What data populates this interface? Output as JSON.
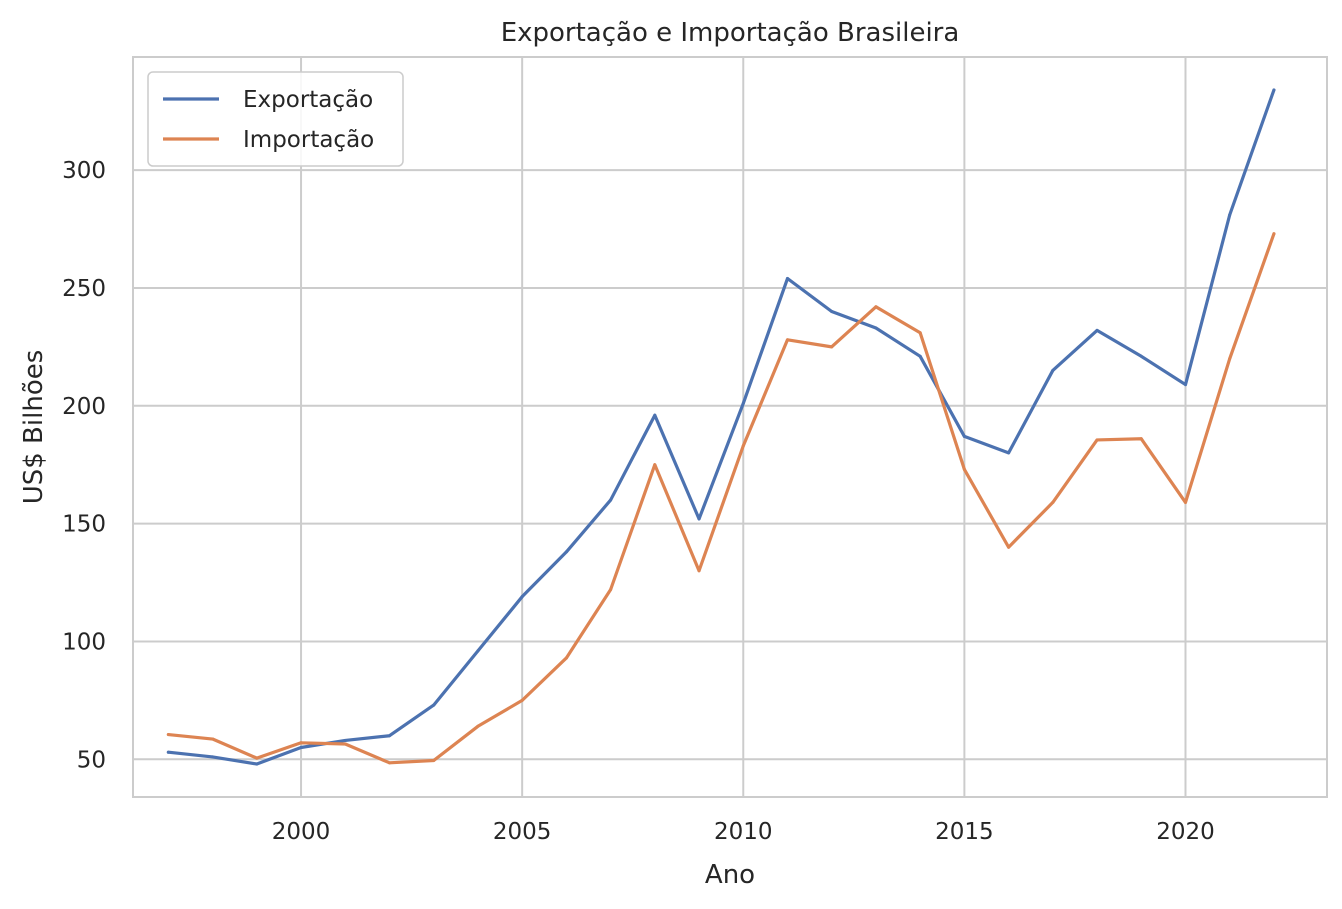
{
  "chart_data": {
    "type": "line",
    "title": "Exportação e Importação Brasileira",
    "xlabel": "Ano",
    "ylabel": "US$ Bilhões",
    "xlim": [
      1996.2,
      2023.2
    ],
    "ylim": [
      34,
      348
    ],
    "xticks": [
      2000,
      2005,
      2010,
      2015,
      2020
    ],
    "yticks": [
      50,
      100,
      150,
      200,
      250,
      300
    ],
    "grid": true,
    "legend_position": "top-left",
    "x": [
      1997,
      1998,
      1999,
      2000,
      2001,
      2002,
      2003,
      2004,
      2005,
      2006,
      2007,
      2008,
      2009,
      2010,
      2011,
      2012,
      2013,
      2014,
      2015,
      2016,
      2017,
      2018,
      2019,
      2020,
      2021,
      2022
    ],
    "series": [
      {
        "name": "Exportação",
        "color": "#4c72b0",
        "values": [
          53,
          51,
          48,
          55,
          58,
          60,
          73,
          96,
          119,
          138,
          160,
          196,
          152,
          201,
          254,
          240,
          233,
          221,
          187,
          180,
          215,
          232,
          221,
          209,
          281,
          334
        ]
      },
      {
        "name": "Importação",
        "color": "#dd8452",
        "values": [
          60.5,
          58.6,
          50.5,
          57,
          56.5,
          48.5,
          49.5,
          64,
          75,
          93,
          122,
          175,
          130,
          183,
          228,
          225,
          242,
          231,
          173,
          140,
          159,
          185.5,
          186,
          159,
          220,
          273
        ]
      }
    ]
  }
}
